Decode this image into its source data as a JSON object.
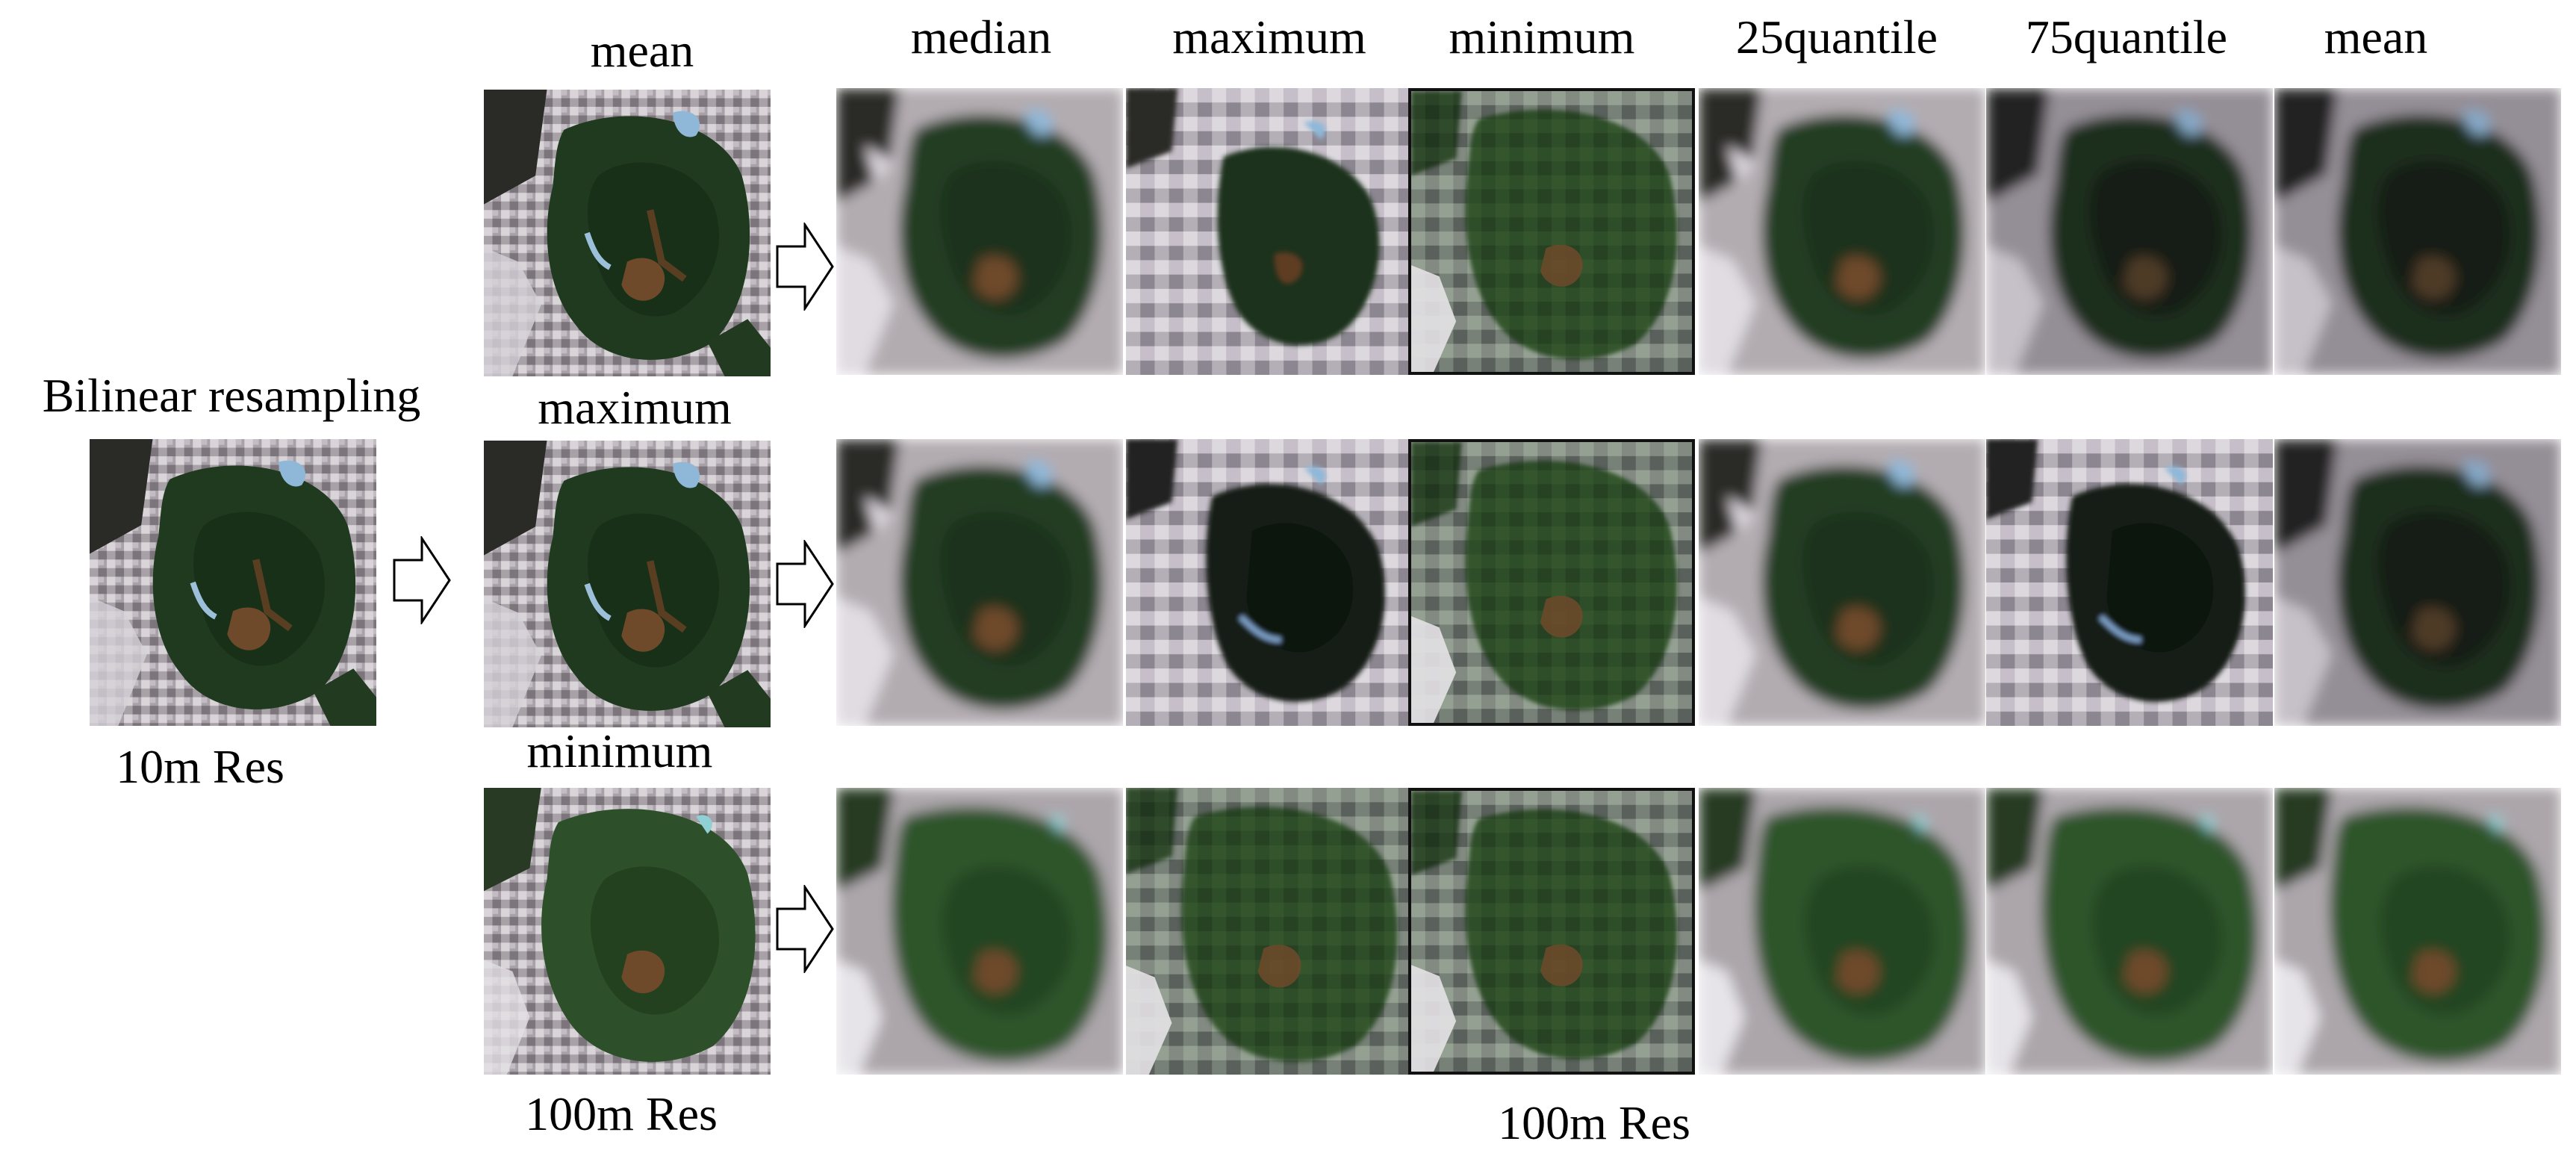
{
  "left": {
    "title": "Bilinear resampling",
    "res_label": "10m Res"
  },
  "middle": {
    "rows": [
      {
        "label": "mean",
        "variant": "detail"
      },
      {
        "label": "maximum",
        "variant": "detail"
      },
      {
        "label": "minimum",
        "variant": "green"
      }
    ],
    "res_label": "100m Res"
  },
  "grid": {
    "columns": [
      "median",
      "maximum",
      "minimum",
      "25quantile",
      "75quantile",
      "mean"
    ],
    "res_label": "100m Res"
  },
  "colors": {
    "forest": "#1f3a1e",
    "urban": "#b7b0b5",
    "water": "#8fb8d8",
    "soil": "#6e4a2a"
  }
}
